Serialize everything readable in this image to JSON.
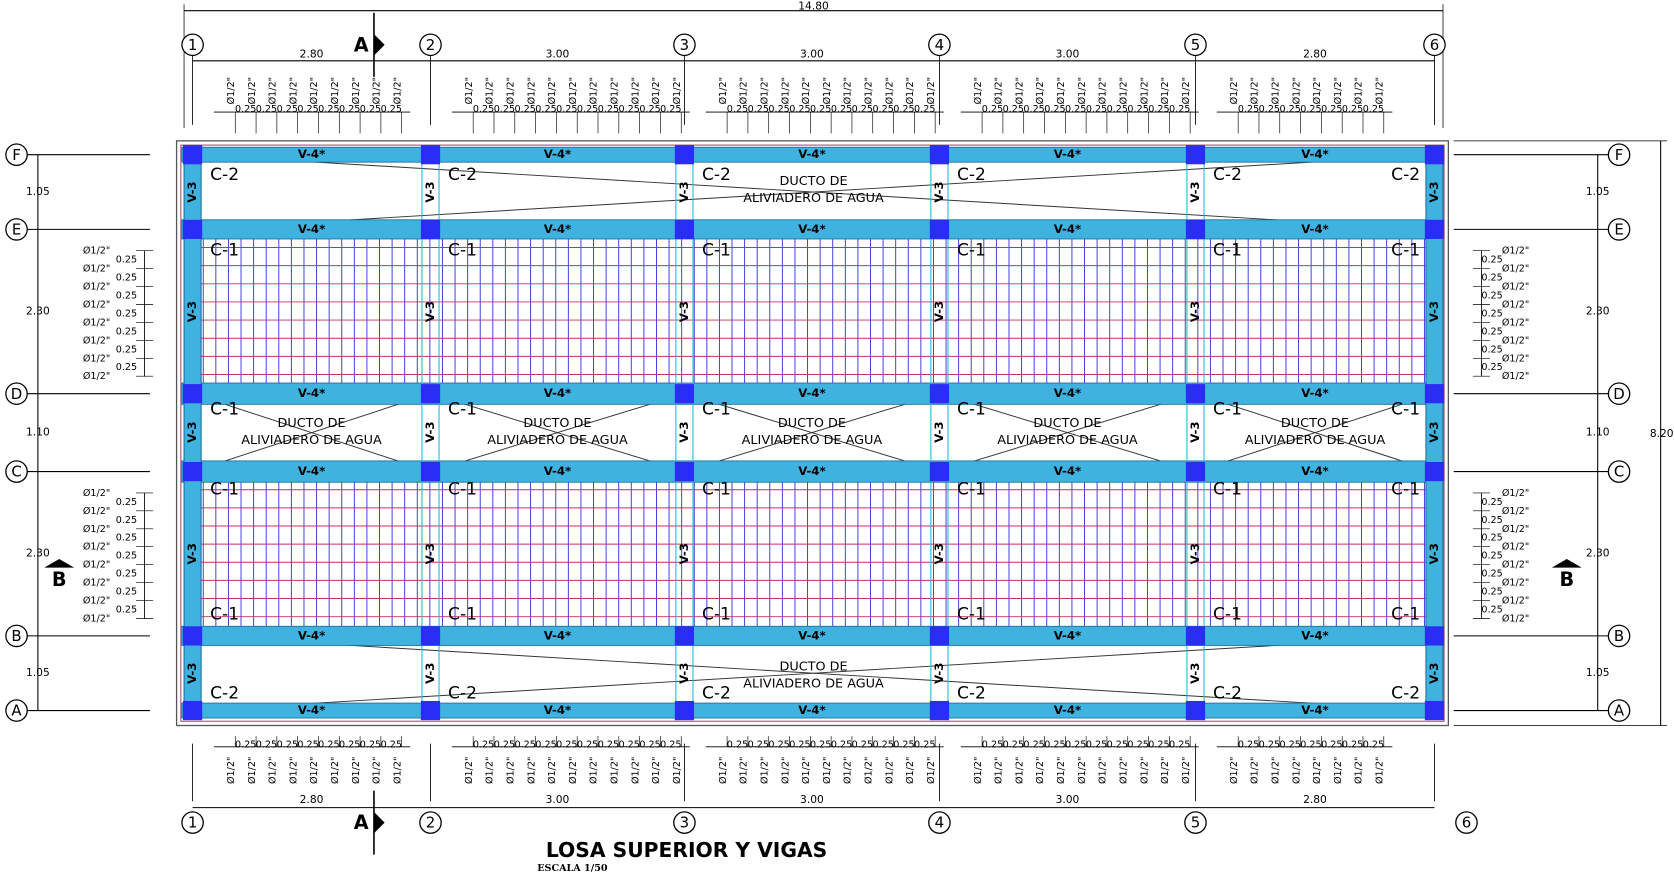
{
  "drawing": {
    "overall_width": "14.80",
    "overall_height": "8.20",
    "axes_x": [
      "1",
      "2",
      "3",
      "4",
      "5",
      "6"
    ],
    "axes_y": [
      "F",
      "E",
      "D",
      "C",
      "B",
      "A"
    ],
    "span_dims": [
      "2.80",
      "3.00",
      "3.00",
      "3.00",
      "2.80"
    ],
    "bay_dims": [
      "1.05",
      "2.30",
      "1.10",
      "2.30",
      "1.05"
    ],
    "beam_main": "V-4*",
    "beam_secondary": "V-3",
    "column_corner": "C-2",
    "column_inner": "C-1",
    "duct_line1": "DUCTO DE",
    "duct_line2": "ALIVIADERO DE AGUA",
    "rebar_diameter": "Ø1/2\"",
    "rebar_spacing": "0.25",
    "section_a": "A",
    "section_b": "B",
    "title": "LOSA SUPERIOR Y VIGAS",
    "scale": "ESCALA 1/50"
  }
}
